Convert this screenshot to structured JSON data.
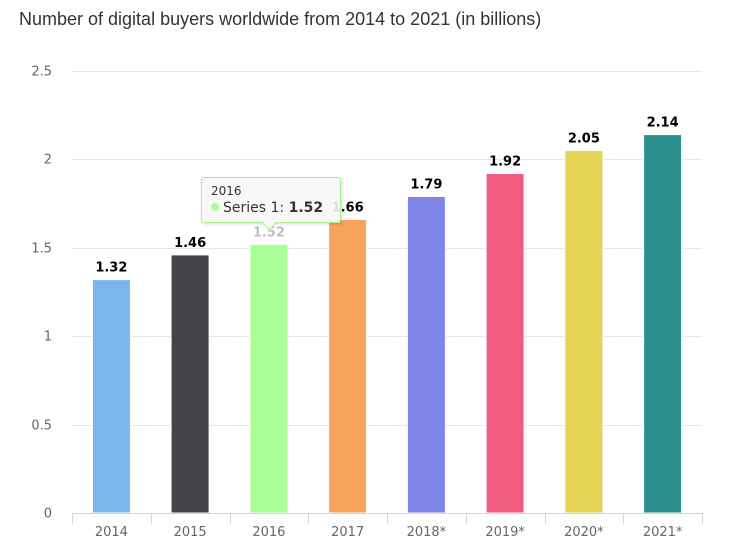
{
  "chart_data": {
    "type": "bar",
    "title": "Number of digital buyers worldwide from 2014 to 2021 (in billions)",
    "xlabel": "",
    "ylabel": "",
    "categories": [
      "2014",
      "2015",
      "2016",
      "2017",
      "2018*",
      "2019*",
      "2020*",
      "2021*"
    ],
    "series": [
      {
        "name": "Series 1",
        "values": [
          1.32,
          1.46,
          1.52,
          1.66,
          1.79,
          1.92,
          2.05,
          2.14
        ],
        "colors": [
          "#7cb5ec",
          "#434348",
          "#a9ff96",
          "#f7a35c",
          "#8085e9",
          "#f15c80",
          "#e4d354",
          "#2b908f"
        ]
      }
    ],
    "data_labels": [
      "1.32",
      "1.46",
      "1.52",
      "1.66",
      "1.79",
      "1.92",
      "2.05",
      "2.14"
    ],
    "ylim": [
      0,
      2.5
    ],
    "yticks": [
      "0",
      "0.5",
      "1",
      "1.5",
      "2",
      "2.5"
    ],
    "ytick_values": [
      0,
      0.5,
      1,
      1.5,
      2,
      2.5
    ],
    "grid": true,
    "legend": "none",
    "hovered_index": 2
  },
  "tooltip": {
    "header": "2016",
    "series_label": "Series 1: ",
    "value": "1.52",
    "dot_color": "#a9ff96"
  }
}
